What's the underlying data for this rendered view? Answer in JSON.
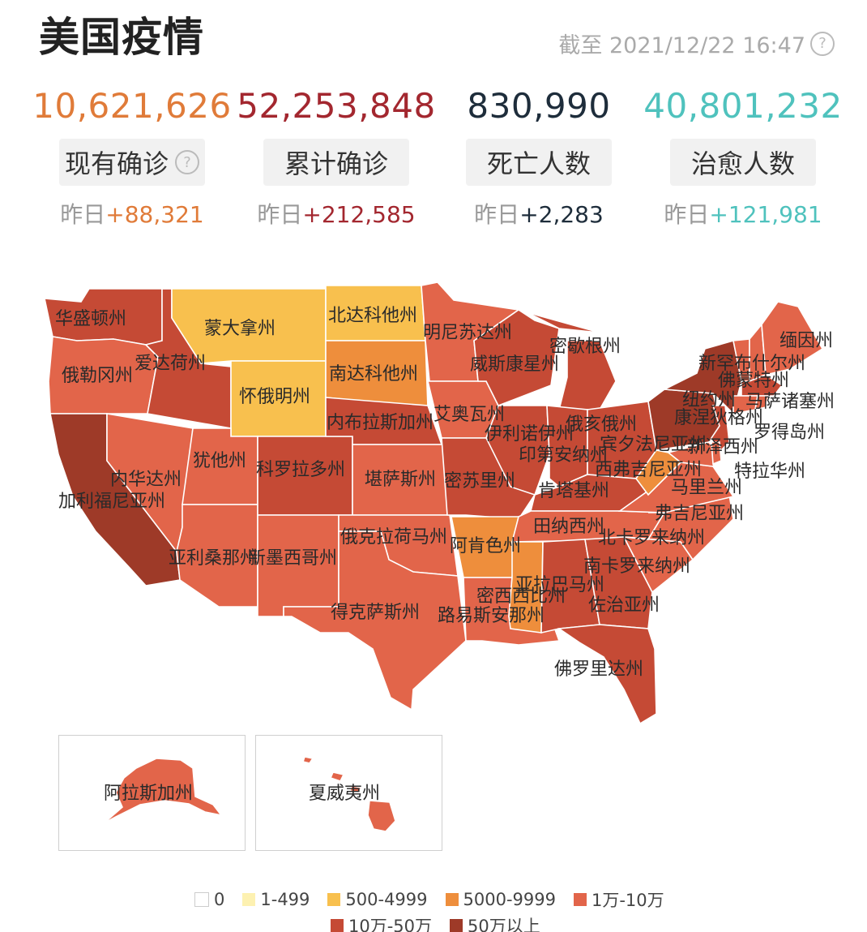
{
  "header": {
    "title": "美国疫情",
    "timestamp": "截至 2021/12/22 16:47",
    "help_icon": "question-circle-icon"
  },
  "stats": [
    {
      "key": "current",
      "value": "10,621,626",
      "label": "现有确诊",
      "has_help": true,
      "delta_prefix": "昨日",
      "delta": "+88,321",
      "color": "#e07b39"
    },
    {
      "key": "cumulative",
      "value": "52,253,848",
      "label": "累计确诊",
      "has_help": false,
      "delta_prefix": "昨日",
      "delta": "+212,585",
      "color": "#a3272f"
    },
    {
      "key": "deaths",
      "value": "830,990",
      "label": "死亡人数",
      "has_help": false,
      "delta_prefix": "昨日",
      "delta": "+2,283",
      "color": "#1e2d3b"
    },
    {
      "key": "recovered",
      "value": "40,801,232",
      "label": "治愈人数",
      "has_help": false,
      "delta_prefix": "昨日",
      "delta": "+121,981",
      "color": "#4fc2bd"
    }
  ],
  "map": {
    "palette": {
      "c0": "#ffffff",
      "c1": "#fdf1b1",
      "c2": "#f8c04e",
      "c3": "#ee8e3c",
      "c4": "#e2654a",
      "c5": "#c54a35",
      "c6": "#9e3a28"
    },
    "states": {
      "wa": {
        "name": "华盛顿州",
        "level": "c5"
      },
      "or": {
        "name": "俄勒冈州",
        "level": "c4"
      },
      "ca": {
        "name": "加利福尼亚州",
        "level": "c6"
      },
      "id": {
        "name": "爱达荷州",
        "level": "c5"
      },
      "nv": {
        "name": "内华达州",
        "level": "c4"
      },
      "mt": {
        "name": "蒙大拿州",
        "level": "c2"
      },
      "wy": {
        "name": "怀俄明州",
        "level": "c2"
      },
      "ut": {
        "name": "犹他州",
        "level": "c4"
      },
      "az": {
        "name": "亚利桑那州",
        "level": "c4"
      },
      "nm": {
        "name": "新墨西哥州",
        "level": "c4"
      },
      "co": {
        "name": "科罗拉多州",
        "level": "c5"
      },
      "nd": {
        "name": "北达科他州",
        "level": "c2"
      },
      "sd": {
        "name": "南达科他州",
        "level": "c3"
      },
      "ne": {
        "name": "内布拉斯加州",
        "level": "c5"
      },
      "ks": {
        "name": "堪萨斯州",
        "level": "c4"
      },
      "ok": {
        "name": "俄克拉荷马州",
        "level": "c4"
      },
      "tx": {
        "name": "得克萨斯州",
        "level": "c4"
      },
      "mn": {
        "name": "明尼苏达州",
        "level": "c4"
      },
      "ia": {
        "name": "艾奥瓦州",
        "level": "c4"
      },
      "mo": {
        "name": "密苏里州",
        "level": "c5"
      },
      "ar": {
        "name": "阿肯色州",
        "level": "c3"
      },
      "la": {
        "name": "路易斯安那州",
        "level": "c4"
      },
      "wi": {
        "name": "威斯康星州",
        "level": "c5"
      },
      "il": {
        "name": "伊利诺伊州",
        "level": "c5"
      },
      "mi": {
        "name": "密歇根州",
        "level": "c5"
      },
      "in": {
        "name": "印第安纳州",
        "level": "c5"
      },
      "oh": {
        "name": "俄亥俄州",
        "level": "c5"
      },
      "ky": {
        "name": "肯塔基州",
        "level": "c5"
      },
      "tn": {
        "name": "田纳西州",
        "level": "c4"
      },
      "ms": {
        "name": "密西西比州",
        "level": "c3"
      },
      "al": {
        "name": "亚拉巴马州",
        "level": "c5"
      },
      "ga": {
        "name": "佐治亚州",
        "level": "c5"
      },
      "fl": {
        "name": "佛罗里达州",
        "level": "c5"
      },
      "sc": {
        "name": "南卡罗来纳州",
        "level": "c4"
      },
      "nc": {
        "name": "北卡罗来纳州",
        "level": "c4"
      },
      "va": {
        "name": "弗吉尼亚州",
        "level": "c4"
      },
      "wv": {
        "name": "西弗吉尼亚州",
        "level": "c3"
      },
      "pa": {
        "name": "宾夕法尼亚州",
        "level": "c6"
      },
      "ny": {
        "name": "纽约州",
        "level": "c6"
      },
      "vt": {
        "name": "佛蒙特州",
        "level": "c4"
      },
      "nh": {
        "name": "新罕布什尔州",
        "level": "c4"
      },
      "me": {
        "name": "缅因州",
        "level": "c4"
      },
      "ma": {
        "name": "马萨诸塞州",
        "level": "c5"
      },
      "ct": {
        "name": "康涅狄格州",
        "level": "c4"
      },
      "ri": {
        "name": "罗得岛州",
        "level": "c4"
      },
      "nj": {
        "name": "新泽西州",
        "level": "c5"
      },
      "de": {
        "name": "特拉华州",
        "level": "c4"
      },
      "md": {
        "name": "马里兰州",
        "level": "c4"
      },
      "ak": {
        "name": "阿拉斯加州",
        "level": "c4"
      },
      "hi": {
        "name": "夏威夷州",
        "level": "c4"
      }
    }
  },
  "legend": [
    {
      "label": "0",
      "level": "c0"
    },
    {
      "label": "1-499",
      "level": "c1"
    },
    {
      "label": "500-4999",
      "level": "c2"
    },
    {
      "label": "5000-9999",
      "level": "c3"
    },
    {
      "label": "1万-10万",
      "level": "c4"
    },
    {
      "label": "10万-50万",
      "level": "c5"
    },
    {
      "label": "50万以上",
      "level": "c6"
    }
  ]
}
